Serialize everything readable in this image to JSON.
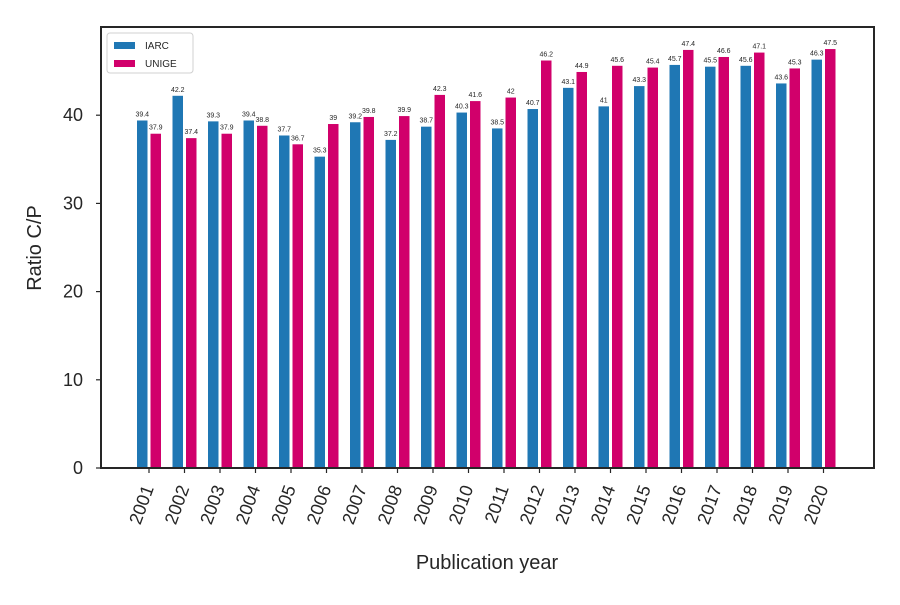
{
  "chart_data": {
    "type": "bar",
    "xlabel": "Publication year",
    "ylabel": "Ratio C/P",
    "ylim": [
      0,
      50
    ],
    "yticks": [
      0,
      10,
      20,
      30,
      40
    ],
    "grid": false,
    "legend_position": "top-left",
    "categories": [
      "2001",
      "2002",
      "2003",
      "2004",
      "2005",
      "2006",
      "2007",
      "2008",
      "2009",
      "2010",
      "2011",
      "2012",
      "2013",
      "2014",
      "2015",
      "2016",
      "2017",
      "2018",
      "2019",
      "2020"
    ],
    "series": [
      {
        "name": "IARC",
        "color": "#1f77b4",
        "values": [
          39.4,
          42.2,
          39.3,
          39.4,
          37.7,
          35.3,
          39.2,
          37.2,
          38.7,
          40.3,
          38.5,
          40.7,
          43.1,
          41,
          43.3,
          45.7,
          45.5,
          45.6,
          43.6,
          46.3
        ],
        "labels": [
          "39.4",
          "42.2",
          "39.3",
          "39.4",
          "37.7",
          "35.3",
          "39.2",
          "37.2",
          "38.7",
          "40.3",
          "38.5",
          "40.7",
          "43.1",
          "41",
          "43.3",
          "45.7",
          "45.5",
          "45.6",
          "43.6",
          "46.3"
        ]
      },
      {
        "name": "UNIGE",
        "color": "#d1006b",
        "values": [
          37.9,
          37.4,
          37.9,
          38.8,
          36.7,
          39,
          39.8,
          39.9,
          42.3,
          41.6,
          42,
          46.2,
          44.9,
          45.6,
          45.4,
          47.4,
          46.6,
          47.1,
          45.3,
          47.5
        ],
        "labels": [
          "37.9",
          "37.4",
          "37.9",
          "38.8",
          "36.7",
          "39",
          "39.8",
          "39.9",
          "42.3",
          "41.6",
          "42",
          "46.2",
          "44.9",
          "45.6",
          "45.4",
          "47.4",
          "46.6",
          "47.1",
          "45.3",
          "47.5"
        ]
      }
    ]
  }
}
